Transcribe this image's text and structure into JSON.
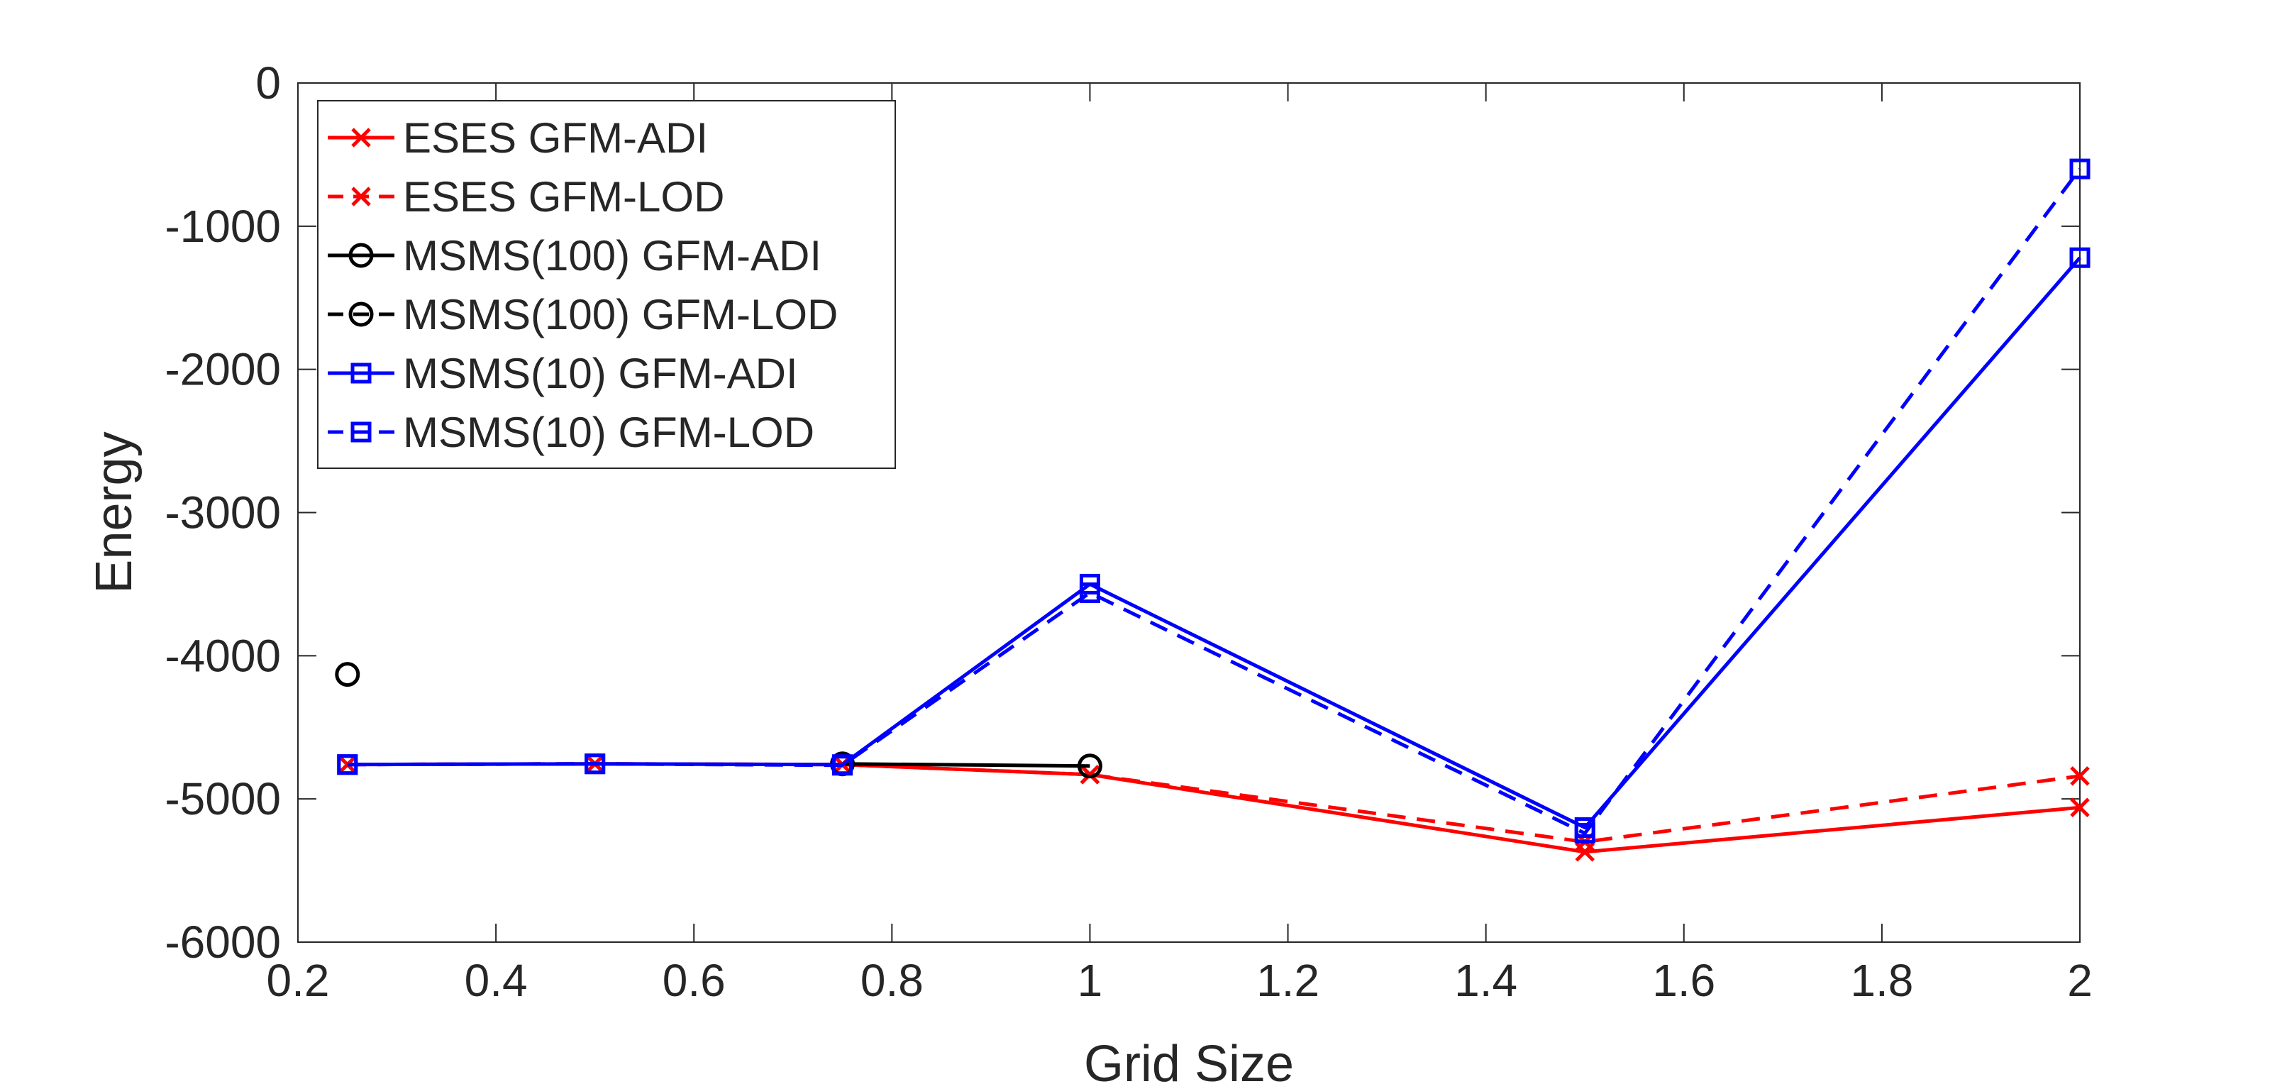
{
  "chart_data": {
    "type": "line",
    "title": "",
    "xlabel": "Grid Size",
    "ylabel": "Energy",
    "xlim": [
      0.2,
      2
    ],
    "ylim": [
      -6000,
      0
    ],
    "xticks": [
      0.2,
      0.4,
      0.6,
      0.8,
      1,
      1.2,
      1.4,
      1.6,
      1.8,
      2
    ],
    "xtick_labels": [
      "0.2",
      "0.4",
      "0.6",
      "0.8",
      "1",
      "1.2",
      "1.4",
      "1.6",
      "1.8",
      "2"
    ],
    "yticks": [
      0,
      -1000,
      -2000,
      -3000,
      -4000,
      -5000,
      -6000
    ],
    "ytick_labels": [
      "0",
      "-1000",
      "-2000",
      "-3000",
      "-4000",
      "-5000",
      "-6000"
    ],
    "grid": false,
    "legend_position": "top-left",
    "series": [
      {
        "name": "ESES GFM-ADI",
        "color": "#ff0000",
        "style": "solid",
        "marker": "x",
        "x": [
          0.25,
          0.5,
          0.75,
          1,
          1.5,
          2
        ],
        "y": [
          -4760,
          -4755,
          -4760,
          -4830,
          -5370,
          -5060
        ]
      },
      {
        "name": "ESES GFM-LOD",
        "color": "#ff0000",
        "style": "dashed",
        "marker": "x",
        "x": [
          0.25,
          0.5,
          0.75,
          1,
          1.5,
          2
        ],
        "y": [
          -4760,
          -4755,
          -4760,
          -4830,
          -5300,
          -4840
        ]
      },
      {
        "name": "MSMS(100) GFM-ADI",
        "color": "#000000",
        "style": "solid",
        "marker": "circle",
        "x": [
          0.25,
          0.75,
          1
        ],
        "y": [
          null,
          -4755,
          -4770
        ]
      },
      {
        "name": "MSMS(100) GFM-LOD",
        "color": "#000000",
        "style": "dashed",
        "marker": "circle",
        "x": [
          0.25,
          0.75,
          1
        ],
        "y": [
          -4130,
          null,
          null
        ]
      },
      {
        "name": "MSMS(10) GFM-ADI",
        "color": "#0000ff",
        "style": "solid",
        "marker": "square",
        "x": [
          0.25,
          0.5,
          0.75,
          1,
          1.5,
          2
        ],
        "y": [
          -4760,
          -4755,
          -4760,
          -3500,
          -5200,
          -1220
        ]
      },
      {
        "name": "MSMS(10) GFM-LOD",
        "color": "#0000ff",
        "style": "dashed",
        "marker": "square",
        "x": [
          0.25,
          0.5,
          0.75,
          1,
          1.5,
          2
        ],
        "y": [
          -4760,
          -4755,
          -4765,
          -3560,
          -5240,
          -600
        ]
      }
    ]
  }
}
